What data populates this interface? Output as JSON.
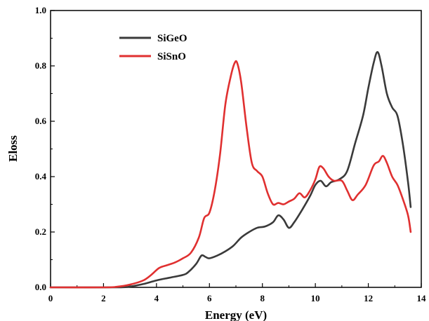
{
  "chart_data": {
    "type": "line",
    "xlabel": "Energy (eV)",
    "ylabel": "Eloss",
    "xlim": [
      0,
      14
    ],
    "ylim": [
      0,
      1.0
    ],
    "x_ticks": [
      "0",
      "2",
      "4",
      "6",
      "8",
      "10",
      "12",
      "14"
    ],
    "y_ticks": [
      "0.0",
      "0.2",
      "0.4",
      "0.6",
      "0.8",
      "1.0"
    ],
    "grid": false,
    "legend_position": "top-left",
    "series": [
      {
        "name": "SiGeO",
        "color": "#3a3a3a",
        "points": [
          [
            0,
            0
          ],
          [
            2.5,
            0
          ],
          [
            3.0,
            0.003
          ],
          [
            3.5,
            0.012
          ],
          [
            4.0,
            0.025
          ],
          [
            4.5,
            0.035
          ],
          [
            5.0,
            0.045
          ],
          [
            5.2,
            0.055
          ],
          [
            5.5,
            0.085
          ],
          [
            5.7,
            0.115
          ],
          [
            5.85,
            0.11
          ],
          [
            6.0,
            0.105
          ],
          [
            6.3,
            0.115
          ],
          [
            6.6,
            0.13
          ],
          [
            6.9,
            0.15
          ],
          [
            7.2,
            0.18
          ],
          [
            7.5,
            0.2
          ],
          [
            7.8,
            0.215
          ],
          [
            8.1,
            0.22
          ],
          [
            8.4,
            0.235
          ],
          [
            8.6,
            0.26
          ],
          [
            8.8,
            0.245
          ],
          [
            9.0,
            0.215
          ],
          [
            9.2,
            0.235
          ],
          [
            9.5,
            0.28
          ],
          [
            9.8,
            0.33
          ],
          [
            10.0,
            0.37
          ],
          [
            10.2,
            0.385
          ],
          [
            10.4,
            0.365
          ],
          [
            10.6,
            0.38
          ],
          [
            10.9,
            0.39
          ],
          [
            11.2,
            0.42
          ],
          [
            11.5,
            0.52
          ],
          [
            11.8,
            0.62
          ],
          [
            12.0,
            0.72
          ],
          [
            12.2,
            0.81
          ],
          [
            12.35,
            0.85
          ],
          [
            12.5,
            0.8
          ],
          [
            12.7,
            0.7
          ],
          [
            12.9,
            0.65
          ],
          [
            13.1,
            0.62
          ],
          [
            13.3,
            0.52
          ],
          [
            13.5,
            0.38
          ],
          [
            13.6,
            0.29
          ]
        ]
      },
      {
        "name": "SiSnO",
        "color": "#e03030",
        "points": [
          [
            0,
            0
          ],
          [
            2.0,
            0
          ],
          [
            2.5,
            0.002
          ],
          [
            3.0,
            0.01
          ],
          [
            3.5,
            0.025
          ],
          [
            3.8,
            0.045
          ],
          [
            4.1,
            0.07
          ],
          [
            4.4,
            0.08
          ],
          [
            4.7,
            0.09
          ],
          [
            5.0,
            0.105
          ],
          [
            5.3,
            0.125
          ],
          [
            5.6,
            0.18
          ],
          [
            5.8,
            0.25
          ],
          [
            6.0,
            0.27
          ],
          [
            6.2,
            0.35
          ],
          [
            6.4,
            0.48
          ],
          [
            6.6,
            0.66
          ],
          [
            6.8,
            0.76
          ],
          [
            6.95,
            0.81
          ],
          [
            7.05,
            0.81
          ],
          [
            7.2,
            0.74
          ],
          [
            7.4,
            0.58
          ],
          [
            7.6,
            0.45
          ],
          [
            7.8,
            0.42
          ],
          [
            8.0,
            0.4
          ],
          [
            8.2,
            0.34
          ],
          [
            8.4,
            0.3
          ],
          [
            8.6,
            0.305
          ],
          [
            8.8,
            0.3
          ],
          [
            9.0,
            0.31
          ],
          [
            9.2,
            0.32
          ],
          [
            9.4,
            0.34
          ],
          [
            9.6,
            0.325
          ],
          [
            9.8,
            0.35
          ],
          [
            10.0,
            0.39
          ],
          [
            10.15,
            0.435
          ],
          [
            10.3,
            0.43
          ],
          [
            10.5,
            0.4
          ],
          [
            10.7,
            0.385
          ],
          [
            11.0,
            0.385
          ],
          [
            11.2,
            0.35
          ],
          [
            11.4,
            0.315
          ],
          [
            11.6,
            0.335
          ],
          [
            11.9,
            0.37
          ],
          [
            12.2,
            0.44
          ],
          [
            12.4,
            0.455
          ],
          [
            12.55,
            0.475
          ],
          [
            12.7,
            0.45
          ],
          [
            12.9,
            0.4
          ],
          [
            13.1,
            0.37
          ],
          [
            13.3,
            0.32
          ],
          [
            13.5,
            0.26
          ],
          [
            13.6,
            0.2
          ]
        ]
      }
    ]
  }
}
